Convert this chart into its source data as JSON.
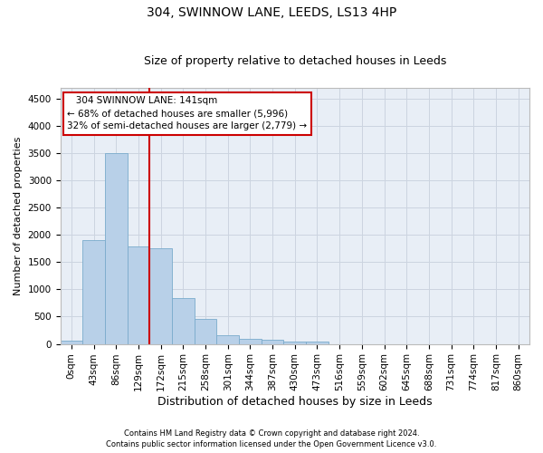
{
  "title_line1": "304, SWINNOW LANE, LEEDS, LS13 4HP",
  "title_line2": "Size of property relative to detached houses in Leeds",
  "xlabel": "Distribution of detached houses by size in Leeds",
  "ylabel": "Number of detached properties",
  "footer1": "Contains HM Land Registry data © Crown copyright and database right 2024.",
  "footer2": "Contains public sector information licensed under the Open Government Licence v3.0.",
  "annotation_line1": "   304 SWINNOW LANE: 141sqm",
  "annotation_line2": "← 68% of detached houses are smaller (5,996)",
  "annotation_line3": "32% of semi-detached houses are larger (2,779) →",
  "bar_color": "#b8d0e8",
  "bar_edge_color": "#7aabcc",
  "vline_color": "#cc0000",
  "annotation_box_edgecolor": "#cc0000",
  "grid_color": "#ccd4e0",
  "background_color": "#e8eef6",
  "categories": [
    "0sqm",
    "43sqm",
    "86sqm",
    "129sqm",
    "172sqm",
    "215sqm",
    "258sqm",
    "301sqm",
    "344sqm",
    "387sqm",
    "430sqm",
    "473sqm",
    "516sqm",
    "559sqm",
    "602sqm",
    "645sqm",
    "688sqm",
    "731sqm",
    "774sqm",
    "817sqm",
    "860sqm"
  ],
  "values": [
    55,
    1900,
    3500,
    1780,
    1760,
    840,
    460,
    155,
    90,
    70,
    50,
    40,
    0,
    0,
    0,
    0,
    0,
    0,
    0,
    0,
    0
  ],
  "ylim": [
    0,
    4700
  ],
  "yticks": [
    0,
    500,
    1000,
    1500,
    2000,
    2500,
    3000,
    3500,
    4000,
    4500
  ],
  "vline_x": 3.5,
  "title1_fontsize": 10,
  "title2_fontsize": 9,
  "ylabel_fontsize": 8,
  "xlabel_fontsize": 9,
  "tick_fontsize": 7.5,
  "annotation_fontsize": 7.5
}
